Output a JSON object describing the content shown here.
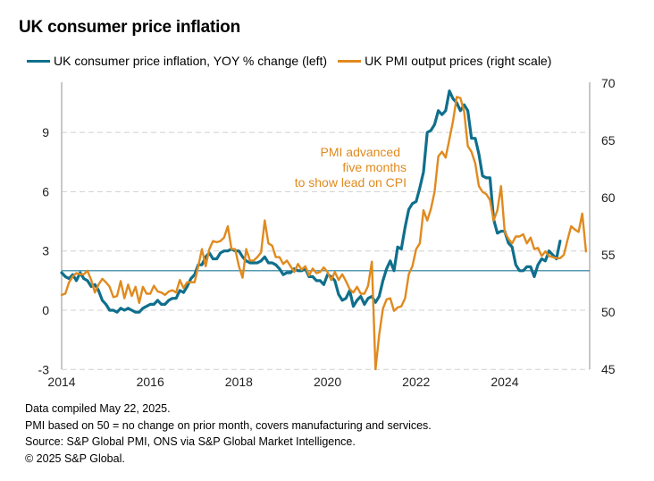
{
  "chart_data": {
    "type": "line",
    "title": "UK consumer price inflation",
    "xlabel": "",
    "ylabel_left": "",
    "ylabel_right": "",
    "x_start": "2014-01",
    "x_step": "month",
    "x_ticks": [
      "2014",
      "2016",
      "2018",
      "2020",
      "2022",
      "2024"
    ],
    "y_left": {
      "min": -3,
      "max": 12,
      "ticks": [
        -3,
        0,
        3,
        6,
        9
      ]
    },
    "y_right": {
      "min": 45,
      "max": 70,
      "ticks": [
        45,
        50,
        55,
        60,
        65,
        70
      ]
    },
    "x_range": [
      "2014-01",
      "2025-12"
    ],
    "grid": "horizontal dashed",
    "reference_line": {
      "axis": "left",
      "value": 2,
      "color": "#1f7a99"
    },
    "legend_position": "top",
    "series": [
      {
        "name": "UK consumer price inflation, YOY % change (left)",
        "axis": "left",
        "color": "#0f6f8c",
        "values": [
          1.9,
          1.7,
          1.6,
          1.8,
          1.5,
          1.9,
          1.6,
          1.5,
          1.2,
          1.3,
          1.0,
          0.5,
          0.3,
          0.0,
          0.0,
          -0.1,
          0.1,
          0.0,
          0.1,
          0.0,
          -0.1,
          -0.1,
          0.1,
          0.2,
          0.3,
          0.3,
          0.5,
          0.3,
          0.3,
          0.5,
          0.6,
          0.6,
          1.0,
          0.9,
          1.2,
          1.6,
          1.8,
          2.3,
          2.3,
          2.7,
          2.9,
          2.6,
          2.6,
          2.9,
          3.0,
          3.0,
          3.1,
          3.0,
          3.0,
          2.7,
          2.5,
          2.4,
          2.4,
          2.4,
          2.5,
          2.7,
          2.4,
          2.4,
          2.3,
          2.1,
          1.8,
          1.9,
          1.9,
          2.1,
          2.0,
          2.0,
          2.1,
          1.7,
          1.7,
          1.5,
          1.5,
          1.3,
          1.8,
          1.7,
          1.5,
          0.8,
          0.5,
          0.6,
          1.0,
          0.2,
          0.5,
          0.7,
          0.3,
          0.6,
          0.7,
          0.4,
          0.7,
          1.5,
          2.1,
          2.5,
          2.0,
          3.2,
          3.1,
          4.2,
          5.1,
          5.4,
          5.5,
          6.2,
          7.0,
          9.0,
          9.1,
          9.4,
          10.1,
          9.9,
          10.1,
          11.1,
          10.7,
          10.5,
          10.1,
          10.4,
          10.1,
          8.7,
          8.7,
          7.9,
          6.8,
          6.7,
          6.7,
          4.6,
          3.9,
          4.0,
          4.0,
          3.4,
          3.2,
          2.3,
          2.0,
          2.0,
          2.2,
          2.2,
          1.7,
          2.3,
          2.6,
          2.5,
          3.0,
          2.8,
          2.6,
          3.5
        ]
      },
      {
        "name": "UK PMI output prices (right scale)",
        "axis": "right",
        "color": "#e08a1e",
        "note": "plotted advanced five months",
        "values": [
          51.5,
          51.6,
          52.6,
          53.1,
          53.4,
          53.3,
          53.3,
          53.6,
          52.8,
          51.7,
          52.4,
          52.9,
          52.6,
          52.2,
          51.3,
          51.4,
          52.7,
          51.2,
          52.4,
          51.4,
          52.2,
          50.8,
          52.2,
          51.6,
          51.6,
          52.3,
          51.8,
          51.7,
          51.5,
          51.8,
          51.9,
          51.7,
          52.8,
          52.1,
          52.6,
          52.6,
          52.6,
          54.0,
          55.5,
          54.0,
          55.5,
          56.2,
          56.1,
          56.2,
          56.5,
          57.5,
          55.5,
          55.5,
          54.0,
          53.0,
          55.5,
          54.5,
          54.5,
          54.8,
          55.2,
          58.0,
          56.0,
          55.8,
          54.8,
          54.8,
          54.2,
          54.5,
          54.0,
          53.5,
          54.2,
          53.7,
          54.0,
          53.2,
          53.8,
          53.4,
          53.5,
          53.9,
          53.5,
          52.8,
          53.5,
          52.8,
          53.3,
          52.7,
          52.0,
          51.7,
          52.2,
          51.6,
          51.6,
          52.3,
          54.4,
          45.0,
          48.0,
          50.3,
          51.1,
          51.2,
          50.1,
          50.4,
          50.5,
          51.2,
          53.3,
          54.0,
          55.5,
          56.0,
          58.9,
          58.0,
          59.0,
          60.5,
          63.6,
          64.0,
          63.5,
          65.1,
          66.7,
          68.8,
          68.7,
          67.5,
          64.5,
          64.0,
          63.0,
          61.0,
          60.5,
          60.3,
          59.8,
          58.0,
          58.9,
          61.0,
          57.0,
          56.4,
          56.0,
          56.6,
          56.6,
          56.8,
          56.0,
          56.5,
          55.5,
          55.6,
          54.9,
          55.3,
          54.9,
          54.8,
          54.7,
          54.7,
          55.0,
          56.3,
          57.5,
          57.2,
          57.0,
          58.6,
          55.3
        ]
      }
    ],
    "annotations": [
      "PMI advanced",
      "five months",
      "to show lead on CPI"
    ]
  },
  "header": {
    "title": "UK consumer price inflation"
  },
  "legend": {
    "items": [
      {
        "label": "UK consumer price inflation, YOY % change (left)",
        "color": "#0f6f8c"
      },
      {
        "label": "UK PMI output prices (right scale)",
        "color": "#e08a1e"
      }
    ]
  },
  "footer": {
    "lines": [
      "Data compiled May 22, 2025.",
      "PMI based on 50 = no change on prior month, covers manufacturing and services.",
      "Source: S&P Global PMI, ONS via S&P Global Market Intelligence.",
      "© 2025 S&P Global."
    ]
  }
}
